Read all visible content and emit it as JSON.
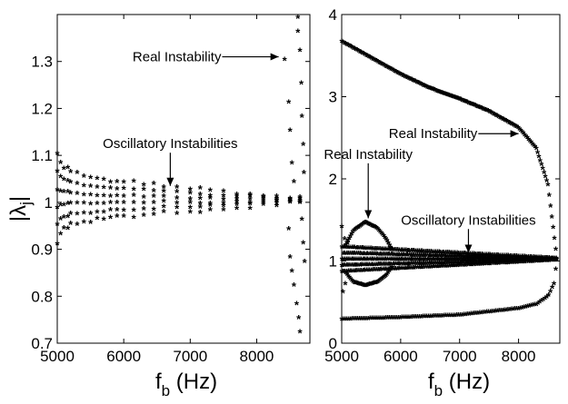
{
  "colors": {
    "left_series": "#ff0000",
    "right_series": "#000000",
    "background": "#ffffff"
  },
  "chart_data": [
    {
      "type": "scatter",
      "panel": "left",
      "marker": "*",
      "xlabel_main": "f",
      "xlabel_sub": "b",
      "xlabel_rest": " (Hz)",
      "ylabel_main": "|λ",
      "ylabel_sub": "j",
      "ylabel_end": "|",
      "xlim": [
        5000,
        8800
      ],
      "ylim": [
        0.7,
        1.4
      ],
      "xticks": [
        5000,
        6000,
        7000,
        8000
      ],
      "yticks": [
        0.7,
        0.8,
        0.9,
        1,
        1.1,
        1.2,
        1.3
      ],
      "xtick_labels": [
        "5000",
        "6000",
        "7000",
        "8000"
      ],
      "ytick_labels": [
        "0.7",
        "0.8",
        "0.9",
        "1",
        "1.1",
        "1.2",
        "1.3"
      ],
      "grid": false,
      "series": [
        {
          "points": [
            [
              5000,
              1.1
            ],
            [
              5000,
              0.91
            ],
            [
              5050,
              1.08
            ],
            [
              5050,
              0.93
            ],
            [
              5100,
              1.07
            ],
            [
              5100,
              0.94
            ],
            [
              5200,
              1.06
            ],
            [
              5200,
              0.95
            ],
            [
              5400,
              1.05
            ],
            [
              5400,
              0.955
            ],
            [
              5600,
              1.045
            ],
            [
              5600,
              0.96
            ],
            [
              5800,
              1.04
            ],
            [
              5800,
              0.965
            ],
            [
              6000,
              1.04
            ],
            [
              6000,
              0.965
            ],
            [
              6300,
              1.035
            ],
            [
              6300,
              0.97
            ],
            [
              6600,
              1.03
            ],
            [
              6600,
              0.975
            ],
            [
              7000,
              1.025
            ],
            [
              7000,
              0.975
            ],
            [
              7300,
              1.02
            ],
            [
              7300,
              0.98
            ],
            [
              7700,
              1.015
            ],
            [
              7700,
              0.985
            ],
            [
              8100,
              1.01
            ],
            [
              8100,
              0.99
            ],
            [
              8500,
              1.005
            ],
            [
              8500,
              0.995
            ]
          ]
        },
        {
          "points": [
            [
              8420,
              1.3
            ],
            [
              8480,
              1.21
            ],
            [
              8500,
              1.15
            ],
            [
              8530,
              1.08
            ],
            [
              8560,
              1.04
            ],
            [
              8620,
              1.39
            ],
            [
              8620,
              1.36
            ],
            [
              8650,
              1.32
            ],
            [
              8670,
              1.25
            ],
            [
              8680,
              1.18
            ],
            [
              8700,
              1.12
            ],
            [
              8710,
              1.06
            ],
            [
              8480,
              0.94
            ],
            [
              8500,
              0.88
            ],
            [
              8530,
              0.85
            ],
            [
              8560,
              0.82
            ],
            [
              8600,
              0.78
            ],
            [
              8630,
              0.75
            ],
            [
              8650,
              0.72
            ],
            [
              8680,
              0.96
            ],
            [
              8700,
              0.91
            ],
            [
              8720,
              0.87
            ]
          ]
        }
      ],
      "annotations": [
        {
          "text": "Real Instability",
          "x": 6800,
          "y": 1.31,
          "arrow_to": [
            8330,
            1.31
          ],
          "arrow": "right"
        },
        {
          "text": "Oscillatory Instabilities",
          "x": 6700,
          "y": 1.125,
          "arrow_to": [
            6700,
            1.035
          ],
          "arrow": "down"
        }
      ]
    },
    {
      "type": "scatter",
      "panel": "right",
      "marker": "*",
      "xlabel_main": "f",
      "xlabel_sub": "b",
      "xlabel_rest": " (Hz)",
      "xlim": [
        5000,
        8700
      ],
      "ylim": [
        0,
        4
      ],
      "xticks": [
        5000,
        6000,
        7000,
        8000
      ],
      "yticks": [
        0,
        1,
        2,
        3,
        4
      ],
      "xtick_labels": [
        "5000",
        "6000",
        "7000",
        "8000"
      ],
      "ytick_labels": [
        "0",
        "1",
        "2",
        "3",
        "4"
      ],
      "grid": false,
      "curves": {
        "upper": [
          [
            5000,
            3.65
          ],
          [
            5500,
            3.45
          ],
          [
            6000,
            3.25
          ],
          [
            6500,
            3.08
          ],
          [
            7000,
            2.95
          ],
          [
            7500,
            2.8
          ],
          [
            8000,
            2.6
          ],
          [
            8300,
            2.35
          ],
          [
            8500,
            1.9
          ],
          [
            8600,
            1.3
          ],
          [
            8650,
            1.0
          ]
        ],
        "lower": [
          [
            5000,
            0.27
          ],
          [
            6000,
            0.29
          ],
          [
            7000,
            0.32
          ],
          [
            7500,
            0.36
          ],
          [
            8000,
            0.4
          ],
          [
            8300,
            0.45
          ],
          [
            8500,
            0.55
          ],
          [
            8600,
            0.7
          ],
          [
            8650,
            1.0
          ]
        ],
        "loop_upper": [
          [
            5050,
            1.15
          ],
          [
            5200,
            1.35
          ],
          [
            5400,
            1.45
          ],
          [
            5600,
            1.38
          ],
          [
            5750,
            1.25
          ],
          [
            5850,
            1.12
          ]
        ],
        "loop_lower": [
          [
            5050,
            0.85
          ],
          [
            5200,
            0.72
          ],
          [
            5400,
            0.68
          ],
          [
            5600,
            0.72
          ],
          [
            5750,
            0.8
          ],
          [
            5850,
            0.9
          ]
        ],
        "band": {
          "center": 1.0,
          "halfwidth_start": 0.15,
          "halfwidth_end": 0.01,
          "x": [
            5000,
            8650
          ]
        }
      },
      "scattered_points": [
        [
          5000,
          1.4
        ],
        [
          5020,
          0.6
        ],
        [
          5050,
          1.25
        ],
        [
          5060,
          0.7
        ],
        [
          5100,
          1.2
        ]
      ],
      "annotations": [
        {
          "text": "Real Instability",
          "x": 6550,
          "y": 2.55,
          "arrow_to": [
            8000,
            2.55
          ],
          "arrow": "right"
        },
        {
          "text": "Real Instability",
          "x": 5450,
          "y": 2.3,
          "arrow_to": [
            5450,
            1.52
          ],
          "arrow": "down"
        },
        {
          "text": "Oscillatory Instabilities",
          "x": 7150,
          "y": 1.5,
          "arrow_to": [
            7150,
            1.1
          ],
          "arrow": "down"
        }
      ]
    }
  ]
}
